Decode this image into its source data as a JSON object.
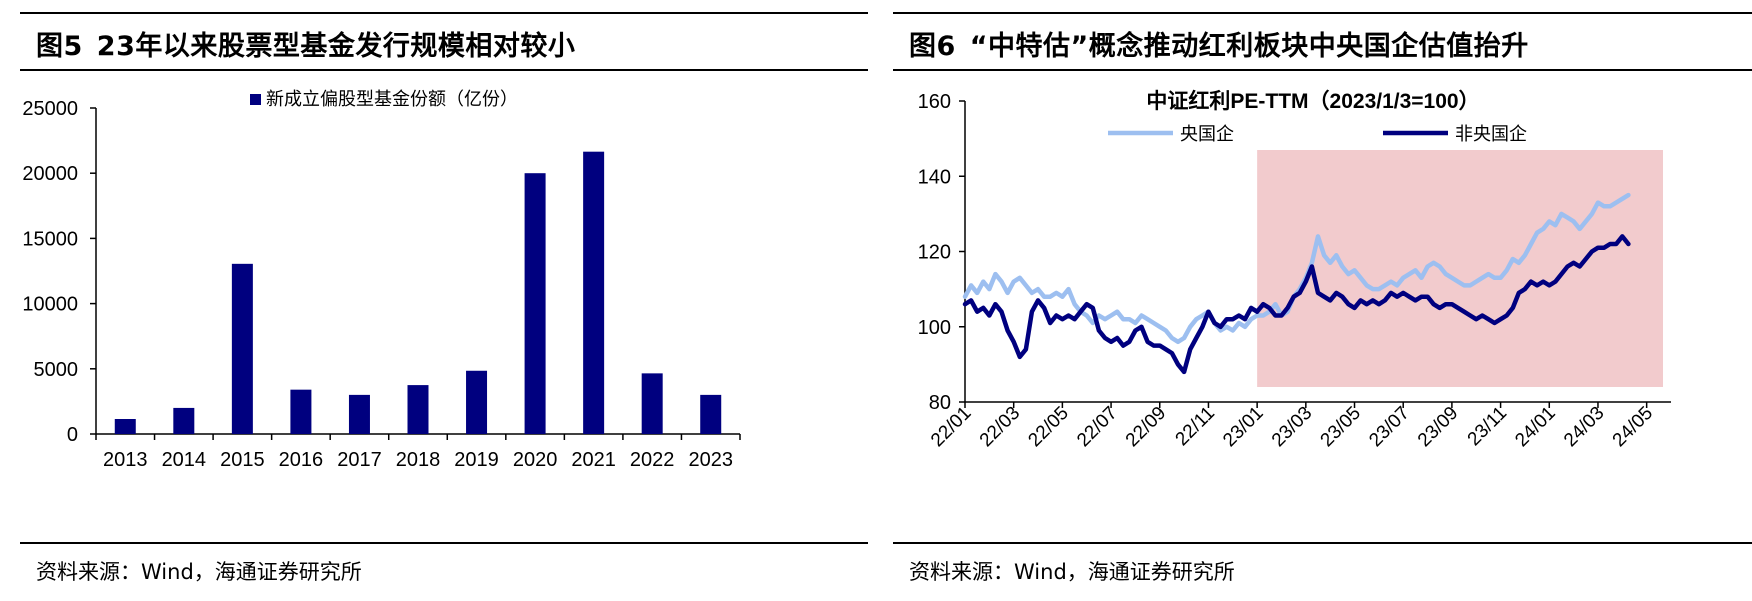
{
  "figures": [
    {
      "number": "图5",
      "title": "23年以来股票型基金发行规模相对较小",
      "source": "资料来源：Wind，海通证券研究所"
    },
    {
      "number": "图6",
      "title": "“中特估”概念推动红利板块中央国企估值抬升",
      "source": "资料来源：Wind，海通证券研究所"
    }
  ],
  "colors": {
    "navy": "#00007f",
    "light_blue": "#9dbff0",
    "highlight": "#f2cbcd",
    "axis": "#000000"
  },
  "chart_data": [
    {
      "type": "bar",
      "legend": "新成立偏股型基金份额（亿份）",
      "categories": [
        "2013",
        "2014",
        "2015",
        "2016",
        "2017",
        "2018",
        "2019",
        "2020",
        "2021",
        "2022",
        "2023"
      ],
      "values": [
        1150,
        2000,
        13050,
        3400,
        3000,
        3750,
        4850,
        20000,
        21650,
        4650,
        3000
      ],
      "ylim": [
        0,
        25000
      ],
      "yticks": [
        "0",
        "5000",
        "10000",
        "15000",
        "20000",
        "25000"
      ],
      "grid": false,
      "color": "#00007f"
    },
    {
      "type": "line",
      "title": "中证红利PE-TTM（2023/1/3=100）",
      "ylim": [
        80,
        160
      ],
      "yticks": [
        "80",
        "100",
        "120",
        "140",
        "160"
      ],
      "x_ticks": [
        "22/01",
        "22/03",
        "22/05",
        "22/07",
        "22/09",
        "22/11",
        "23/01",
        "23/03",
        "23/05",
        "23/07",
        "23/09",
        "23/11",
        "24/01",
        "24/03",
        "24/05"
      ],
      "x_range": [
        "22/01",
        "24/06"
      ],
      "shaded_range": [
        "23/01",
        "24/06"
      ],
      "grid": false,
      "series": [
        {
          "name": "央国企",
          "color": "#9dbff0",
          "points": [
            [
              0.0,
              108
            ],
            [
              0.25,
              111
            ],
            [
              0.5,
              109
            ],
            [
              0.75,
              112
            ],
            [
              1.0,
              110
            ],
            [
              1.25,
              114
            ],
            [
              1.5,
              112
            ],
            [
              1.75,
              109
            ],
            [
              2.0,
              112
            ],
            [
              2.25,
              113
            ],
            [
              2.5,
              111
            ],
            [
              2.75,
              109
            ],
            [
              3.0,
              110
            ],
            [
              3.25,
              108
            ],
            [
              3.5,
              108
            ],
            [
              3.75,
              109
            ],
            [
              4.0,
              108
            ],
            [
              4.25,
              110
            ],
            [
              4.5,
              106
            ],
            [
              4.75,
              104
            ],
            [
              5.0,
              103
            ],
            [
              5.25,
              101
            ],
            [
              5.5,
              103
            ],
            [
              5.75,
              102
            ],
            [
              6.0,
              103
            ],
            [
              6.25,
              104
            ],
            [
              6.5,
              102
            ],
            [
              6.75,
              102
            ],
            [
              7.0,
              101
            ],
            [
              7.25,
              103
            ],
            [
              7.5,
              102
            ],
            [
              7.75,
              101
            ],
            [
              8.0,
              100
            ],
            [
              8.25,
              99
            ],
            [
              8.5,
              97
            ],
            [
              8.75,
              96
            ],
            [
              9.0,
              97
            ],
            [
              9.25,
              100
            ],
            [
              9.5,
              102
            ],
            [
              9.75,
              103
            ],
            [
              10.0,
              104
            ],
            [
              10.25,
              101
            ],
            [
              10.5,
              99
            ],
            [
              10.75,
              100
            ],
            [
              11.0,
              99
            ],
            [
              11.25,
              101
            ],
            [
              11.5,
              100
            ],
            [
              11.75,
              102
            ],
            [
              12.0,
              103
            ],
            [
              12.25,
              103
            ],
            [
              12.5,
              104
            ],
            [
              12.75,
              106
            ],
            [
              13.0,
              103
            ],
            [
              13.25,
              104
            ],
            [
              13.5,
              108
            ],
            [
              13.75,
              110
            ],
            [
              14.0,
              113
            ],
            [
              14.25,
              117
            ],
            [
              14.5,
              124
            ],
            [
              14.75,
              119
            ],
            [
              15.0,
              117
            ],
            [
              15.25,
              119
            ],
            [
              15.5,
              116
            ],
            [
              15.75,
              114
            ],
            [
              16.0,
              115
            ],
            [
              16.25,
              113
            ],
            [
              16.5,
              111
            ],
            [
              16.75,
              110
            ],
            [
              17.0,
              110
            ],
            [
              17.25,
              111
            ],
            [
              17.5,
              112
            ],
            [
              17.75,
              111
            ],
            [
              18.0,
              113
            ],
            [
              18.25,
              114
            ],
            [
              18.5,
              115
            ],
            [
              18.75,
              113
            ],
            [
              19.0,
              116
            ],
            [
              19.25,
              117
            ],
            [
              19.5,
              116
            ],
            [
              19.75,
              114
            ],
            [
              20.0,
              113
            ],
            [
              20.25,
              112
            ],
            [
              20.5,
              111
            ],
            [
              20.75,
              111
            ],
            [
              21.0,
              112
            ],
            [
              21.25,
              113
            ],
            [
              21.5,
              114
            ],
            [
              21.75,
              113
            ],
            [
              22.0,
              113
            ],
            [
              22.25,
              115
            ],
            [
              22.5,
              118
            ],
            [
              22.75,
              117
            ],
            [
              23.0,
              119
            ],
            [
              23.25,
              122
            ],
            [
              23.5,
              125
            ],
            [
              23.75,
              126
            ],
            [
              24.0,
              128
            ],
            [
              24.25,
              127
            ],
            [
              24.5,
              130
            ],
            [
              24.75,
              129
            ],
            [
              25.0,
              128
            ],
            [
              25.25,
              126
            ],
            [
              25.5,
              128
            ],
            [
              25.75,
              130
            ],
            [
              26.0,
              133
            ],
            [
              26.25,
              132
            ],
            [
              26.5,
              132
            ],
            [
              26.75,
              133
            ],
            [
              27.0,
              134
            ],
            [
              27.25,
              135
            ]
          ]
        },
        {
          "name": "非央国企",
          "color": "#00007f",
          "points": [
            [
              0.0,
              106
            ],
            [
              0.25,
              107
            ],
            [
              0.5,
              104
            ],
            [
              0.75,
              105
            ],
            [
              1.0,
              103
            ],
            [
              1.25,
              106
            ],
            [
              1.5,
              104
            ],
            [
              1.75,
              99
            ],
            [
              2.0,
              96
            ],
            [
              2.25,
              92
            ],
            [
              2.5,
              94
            ],
            [
              2.75,
              104
            ],
            [
              3.0,
              107
            ],
            [
              3.25,
              105
            ],
            [
              3.5,
              101
            ],
            [
              3.75,
              103
            ],
            [
              4.0,
              102
            ],
            [
              4.25,
              103
            ],
            [
              4.5,
              102
            ],
            [
              4.75,
              104
            ],
            [
              5.0,
              106
            ],
            [
              5.25,
              105
            ],
            [
              5.5,
              99
            ],
            [
              5.75,
              97
            ],
            [
              6.0,
              96
            ],
            [
              6.25,
              97
            ],
            [
              6.5,
              95
            ],
            [
              6.75,
              96
            ],
            [
              7.0,
              99
            ],
            [
              7.25,
              100
            ],
            [
              7.5,
              96
            ],
            [
              7.75,
              95
            ],
            [
              8.0,
              95
            ],
            [
              8.25,
              94
            ],
            [
              8.5,
              93
            ],
            [
              8.75,
              90
            ],
            [
              9.0,
              88
            ],
            [
              9.25,
              94
            ],
            [
              9.5,
              97
            ],
            [
              9.75,
              100
            ],
            [
              10.0,
              104
            ],
            [
              10.25,
              101
            ],
            [
              10.5,
              100
            ],
            [
              10.75,
              102
            ],
            [
              11.0,
              102
            ],
            [
              11.25,
              103
            ],
            [
              11.5,
              102
            ],
            [
              11.75,
              105
            ],
            [
              12.0,
              104
            ],
            [
              12.25,
              106
            ],
            [
              12.5,
              105
            ],
            [
              12.75,
              103
            ],
            [
              13.0,
              103
            ],
            [
              13.25,
              105
            ],
            [
              13.5,
              108
            ],
            [
              13.75,
              109
            ],
            [
              14.0,
              112
            ],
            [
              14.25,
              116
            ],
            [
              14.5,
              109
            ],
            [
              14.75,
              108
            ],
            [
              15.0,
              107
            ],
            [
              15.25,
              109
            ],
            [
              15.5,
              108
            ],
            [
              15.75,
              106
            ],
            [
              16.0,
              105
            ],
            [
              16.25,
              107
            ],
            [
              16.5,
              106
            ],
            [
              16.75,
              107
            ],
            [
              17.0,
              106
            ],
            [
              17.25,
              107
            ],
            [
              17.5,
              109
            ],
            [
              17.75,
              108
            ],
            [
              18.0,
              109
            ],
            [
              18.25,
              108
            ],
            [
              18.5,
              107
            ],
            [
              18.75,
              108
            ],
            [
              19.0,
              108
            ],
            [
              19.25,
              106
            ],
            [
              19.5,
              105
            ],
            [
              19.75,
              106
            ],
            [
              20.0,
              106
            ],
            [
              20.25,
              105
            ],
            [
              20.5,
              104
            ],
            [
              20.75,
              103
            ],
            [
              21.0,
              102
            ],
            [
              21.25,
              103
            ],
            [
              21.5,
              102
            ],
            [
              21.75,
              101
            ],
            [
              22.0,
              102
            ],
            [
              22.25,
              103
            ],
            [
              22.5,
              105
            ],
            [
              22.75,
              109
            ],
            [
              23.0,
              110
            ],
            [
              23.25,
              112
            ],
            [
              23.5,
              111
            ],
            [
              23.75,
              112
            ],
            [
              24.0,
              111
            ],
            [
              24.25,
              112
            ],
            [
              24.5,
              114
            ],
            [
              24.75,
              116
            ],
            [
              25.0,
              117
            ],
            [
              25.25,
              116
            ],
            [
              25.5,
              118
            ],
            [
              25.75,
              120
            ],
            [
              26.0,
              121
            ],
            [
              26.25,
              121
            ],
            [
              26.5,
              122
            ],
            [
              26.75,
              122
            ],
            [
              27.0,
              124
            ],
            [
              27.25,
              122
            ]
          ]
        }
      ]
    }
  ]
}
